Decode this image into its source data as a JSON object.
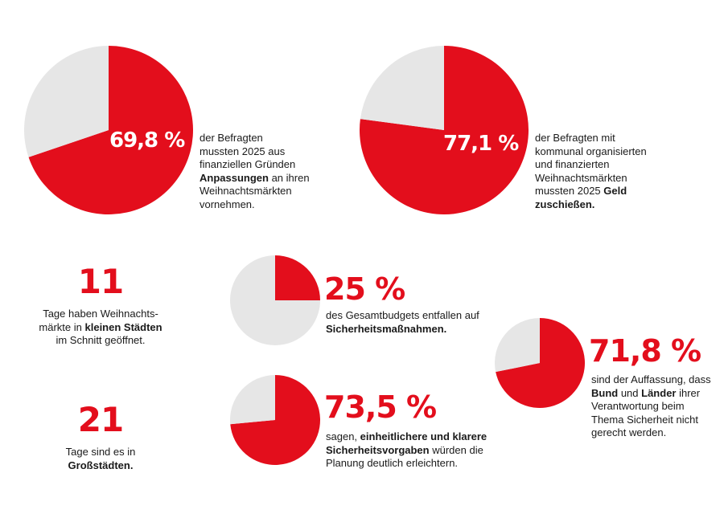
{
  "colors": {
    "accent": "#e30e1c",
    "rest": "#e6e6e6"
  },
  "chart_data": [
    {
      "type": "pie",
      "slices": [
        69.8,
        30.2
      ],
      "label": "69,8 %",
      "text": [
        [
          "der Befragten"
        ],
        [
          "mussten 2025 aus"
        ],
        [
          "finanziellen Gründen"
        ],
        [
          "",
          "Anpassungen",
          " an ihren"
        ],
        [
          "Weihnachtsmärkten"
        ],
        [
          "vornehmen."
        ]
      ]
    },
    {
      "type": "pie",
      "slices": [
        77.1,
        22.9
      ],
      "label": "77,1 %",
      "text": [
        [
          "der Befragten mit"
        ],
        [
          "kommunal organisierten"
        ],
        [
          "und finanzierten"
        ],
        [
          "Weihnachtsmärkten"
        ],
        [
          "mussten 2025 ",
          "Geld"
        ],
        [
          "",
          "zuschießen."
        ]
      ]
    },
    {
      "type": "pie",
      "slices": [
        25,
        75
      ],
      "label": "25 %",
      "text": [
        [
          "des Gesamtbudgets entfallen auf"
        ],
        [
          "",
          "Sicherheitsmaßnahmen."
        ]
      ]
    },
    {
      "type": "pie",
      "slices": [
        73.5,
        26.5
      ],
      "label": "73,5 %",
      "text": [
        [
          "sagen, ",
          "einheitlichere und klarere"
        ],
        [
          "",
          "Sicherheitsvorgaben",
          " würden die"
        ],
        [
          "Planung deutlich erleichtern."
        ]
      ]
    },
    {
      "type": "pie",
      "slices": [
        71.8,
        28.2
      ],
      "label": "71,8 %",
      "text": [
        [
          "sind der Auffassung, dass"
        ],
        [
          "",
          "Bund",
          " und ",
          "Länder",
          " ihrer"
        ],
        [
          "Verantwortung beim"
        ],
        [
          "Thema Sicherheit nicht"
        ],
        [
          "gerecht werden."
        ]
      ]
    }
  ],
  "stats": [
    {
      "value": "11",
      "text": [
        [
          "Tage haben Weihnachts-"
        ],
        [
          "märkte in ",
          "kleinen Städten"
        ],
        [
          "im Schnitt geöffnet."
        ]
      ]
    },
    {
      "value": "21",
      "text": [
        [
          "Tage sind es in"
        ],
        [
          "",
          "Großstädten."
        ]
      ]
    }
  ]
}
